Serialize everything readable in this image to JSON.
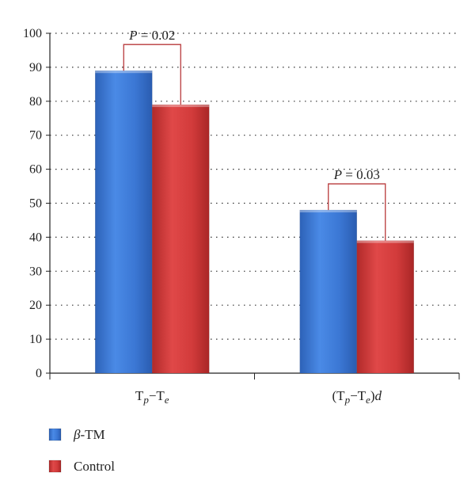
{
  "chart_data": {
    "type": "bar",
    "categories": [
      "Tp−Te",
      "(Tp−Te)d"
    ],
    "category_parts": [
      {
        "pre": "",
        "a": "T",
        "asub": "p",
        "mid": "−T",
        "bsub": "e",
        "post": ""
      },
      {
        "pre": "(",
        "a": "T",
        "asub": "p",
        "mid": "−T",
        "bsub": "e",
        "post": ")",
        "tail": "d"
      }
    ],
    "series": [
      {
        "name": "β-TM",
        "name_parts": {
          "italic": "β",
          "rest": "-TM"
        },
        "values": [
          89,
          48
        ],
        "color": "#3a7bd5"
      },
      {
        "name": "Control",
        "name_parts": {
          "italic": "",
          "rest": "Control"
        },
        "values": [
          79,
          39
        ],
        "color": "#d23b3b"
      }
    ],
    "annotations": [
      {
        "category_index": 0,
        "italic": "P",
        "text": " = 0.02"
      },
      {
        "category_index": 1,
        "italic": "P",
        "text": " = 0.03"
      }
    ],
    "ylim": [
      0,
      100
    ],
    "yticks": [
      0,
      10,
      20,
      30,
      40,
      50,
      60,
      70,
      80,
      90,
      100
    ],
    "grid": true,
    "legend": "bottom-left",
    "bracket_color": "#b8393a",
    "title": "",
    "xlabel": "",
    "ylabel": ""
  }
}
